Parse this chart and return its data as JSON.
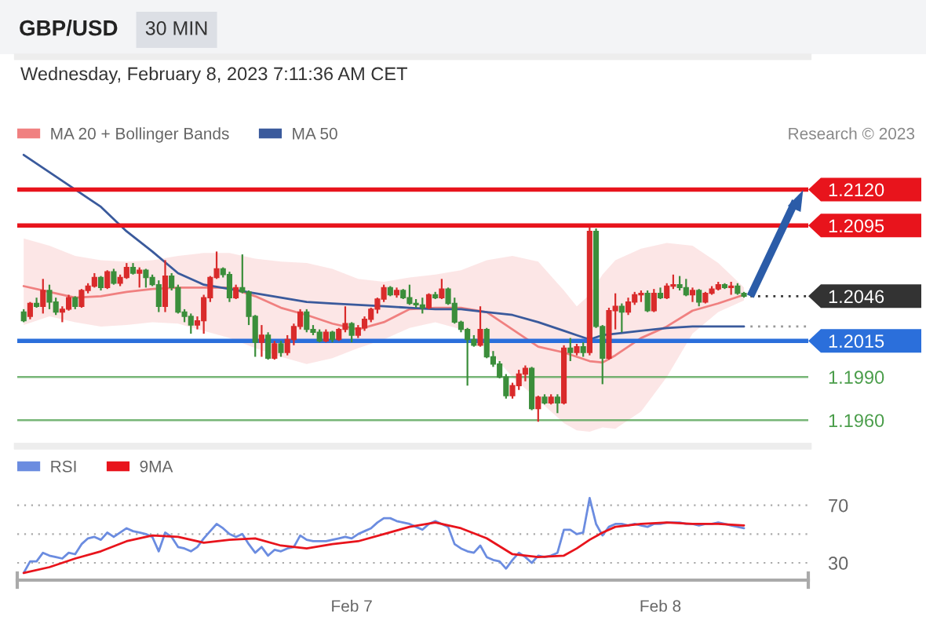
{
  "chart_data": [
    {
      "type": "candlestick",
      "title": "GBP/USD",
      "subtitle": "Wednesday, February 8, 2023 7:11:36 AM CET",
      "annotations": [
        "30 MIN",
        "Research © 2023"
      ],
      "x": [
        "2023-02-05T22:30",
        "2023-02-05T23:00",
        "2023-02-05T23:30",
        "2023-02-06T00:00",
        "2023-02-06T00:30",
        "2023-02-06T01:00",
        "2023-02-06T01:30",
        "2023-02-06T02:00",
        "2023-02-06T02:30",
        "2023-02-06T03:00",
        "2023-02-06T03:30",
        "2023-02-06T04:00",
        "2023-02-06T04:30",
        "2023-02-06T05:00",
        "2023-02-06T05:30",
        "2023-02-06T06:00",
        "2023-02-06T06:30",
        "2023-02-06T07:00",
        "2023-02-06T07:30",
        "2023-02-06T08:00",
        "2023-02-06T08:30",
        "2023-02-06T09:00",
        "2023-02-06T09:30",
        "2023-02-06T10:00",
        "2023-02-06T10:30",
        "2023-02-06T11:00",
        "2023-02-06T11:30",
        "2023-02-06T12:00",
        "2023-02-06T12:30",
        "2023-02-06T13:00",
        "2023-02-06T13:30",
        "2023-02-06T14:00",
        "2023-02-06T14:30",
        "2023-02-06T15:00",
        "2023-02-06T15:30",
        "2023-02-06T16:00",
        "2023-02-06T16:30",
        "2023-02-06T17:00",
        "2023-02-06T17:30",
        "2023-02-06T18:00",
        "2023-02-06T18:30",
        "2023-02-06T19:00",
        "2023-02-06T19:30",
        "2023-02-06T20:00",
        "2023-02-06T20:30",
        "2023-02-06T21:00",
        "2023-02-06T21:30",
        "2023-02-06T22:00",
        "2023-02-06T22:30",
        "2023-02-06T23:00",
        "2023-02-06T23:30",
        "2023-02-07T00:00",
        "2023-02-07T00:30",
        "2023-02-07T01:00",
        "2023-02-07T01:30",
        "2023-02-07T02:00",
        "2023-02-07T02:30",
        "2023-02-07T03:00",
        "2023-02-07T03:30",
        "2023-02-07T04:00",
        "2023-02-07T04:30",
        "2023-02-07T05:00",
        "2023-02-07T05:30",
        "2023-02-07T06:00",
        "2023-02-07T06:30",
        "2023-02-07T07:00",
        "2023-02-07T07:30",
        "2023-02-07T08:00",
        "2023-02-07T08:30",
        "2023-02-07T09:00",
        "2023-02-07T09:30",
        "2023-02-07T10:00",
        "2023-02-07T10:30",
        "2023-02-07T11:00",
        "2023-02-07T11:30",
        "2023-02-07T12:00",
        "2023-02-07T12:30",
        "2023-02-07T13:00",
        "2023-02-07T13:30",
        "2023-02-07T14:00",
        "2023-02-07T14:30",
        "2023-02-07T15:00",
        "2023-02-07T15:30",
        "2023-02-07T16:00",
        "2023-02-07T16:30",
        "2023-02-07T17:00",
        "2023-02-07T17:30",
        "2023-02-07T18:00",
        "2023-02-07T18:30",
        "2023-02-07T19:00",
        "2023-02-07T19:30",
        "2023-02-07T20:00",
        "2023-02-07T20:30",
        "2023-02-07T21:00",
        "2023-02-07T21:30",
        "2023-02-07T22:00",
        "2023-02-07T22:30",
        "2023-02-07T23:00",
        "2023-02-07T23:30",
        "2023-02-08T00:00",
        "2023-02-08T00:30",
        "2023-02-08T01:00",
        "2023-02-08T01:30",
        "2023-02-08T02:00",
        "2023-02-08T02:30",
        "2023-02-08T03:00",
        "2023-02-08T03:30",
        "2023-02-08T04:00",
        "2023-02-08T04:30",
        "2023-02-08T05:00",
        "2023-02-08T05:30",
        "2023-02-08T06:00",
        "2023-02-08T06:30"
      ],
      "ohlc": [
        [
          1.2035,
          1.2037,
          1.2028,
          1.2029
        ],
        [
          1.2032,
          1.2042,
          1.203,
          1.2041
        ],
        [
          1.2041,
          1.2045,
          1.2038,
          1.2039
        ],
        [
          1.2039,
          1.2058,
          1.2034,
          1.205
        ],
        [
          1.205,
          1.2054,
          1.2037,
          1.2042
        ],
        [
          1.2042,
          1.2045,
          1.2033,
          1.2035
        ],
        [
          1.2035,
          1.2039,
          1.2028,
          1.2037
        ],
        [
          1.2037,
          1.2047,
          1.2036,
          1.2045
        ],
        [
          1.2045,
          1.2046,
          1.2037,
          1.2039
        ],
        [
          1.2039,
          1.2051,
          1.2038,
          1.205
        ],
        [
          1.205,
          1.2055,
          1.2048,
          1.2053
        ],
        [
          1.2053,
          1.2062,
          1.2052,
          1.2059
        ],
        [
          1.2059,
          1.206,
          1.205,
          1.2052
        ],
        [
          1.2052,
          1.2064,
          1.2051,
          1.2063
        ],
        [
          1.2063,
          1.2065,
          1.2054,
          1.2055
        ],
        [
          1.2055,
          1.2061,
          1.2053,
          1.2059
        ],
        [
          1.2059,
          1.2069,
          1.2058,
          1.2066
        ],
        [
          1.2066,
          1.2069,
          1.2061,
          1.2062
        ],
        [
          1.2062,
          1.2066,
          1.2052,
          1.2064
        ],
        [
          1.2064,
          1.2065,
          1.2052,
          1.2059
        ],
        [
          1.2059,
          1.2061,
          1.2053,
          1.2054
        ],
        [
          1.2054,
          1.2057,
          1.2035,
          1.2039
        ],
        [
          1.2039,
          1.2071,
          1.2035,
          1.206
        ],
        [
          1.206,
          1.2062,
          1.205,
          1.2052
        ],
        [
          1.2052,
          1.2054,
          1.2034,
          1.2035
        ],
        [
          1.2035,
          1.2037,
          1.2028,
          1.2032
        ],
        [
          1.2032,
          1.2034,
          1.202,
          1.2026
        ],
        [
          1.2026,
          1.2032,
          1.2023,
          1.2029
        ],
        [
          1.2029,
          1.2047,
          1.202,
          1.2045
        ],
        [
          1.2045,
          1.206,
          1.2042,
          1.2059
        ],
        [
          1.2059,
          1.2077,
          1.2058,
          1.2065
        ],
        [
          1.2065,
          1.2066,
          1.2059,
          1.2061
        ],
        [
          1.2061,
          1.2063,
          1.2042,
          1.2045
        ],
        [
          1.2045,
          1.2054,
          1.2044,
          1.2052
        ],
        [
          1.2052,
          1.2075,
          1.2048,
          1.2049
        ],
        [
          1.2049,
          1.205,
          1.2026,
          1.2032
        ],
        [
          1.2032,
          1.2033,
          1.2004,
          1.2014
        ],
        [
          1.2014,
          1.2026,
          1.2004,
          1.2019
        ],
        [
          1.2019,
          1.2021,
          1.2002,
          1.2003
        ],
        [
          1.2003,
          1.2015,
          1.2002,
          1.2013
        ],
        [
          1.2013,
          1.2015,
          1.2004,
          1.2007
        ],
        [
          1.2007,
          1.2019,
          1.2005,
          1.2016
        ],
        [
          1.2016,
          1.2027,
          1.2012,
          1.2025
        ],
        [
          1.2025,
          1.2037,
          1.2023,
          1.2035
        ],
        [
          1.2035,
          1.2037,
          1.2021,
          1.2023
        ],
        [
          1.2023,
          1.2026,
          1.2019,
          1.2021
        ],
        [
          1.2021,
          1.2023,
          1.2014,
          1.2015
        ],
        [
          1.2015,
          1.2023,
          1.2014,
          1.2021
        ],
        [
          1.2021,
          1.2022,
          1.2014,
          1.2016
        ],
        [
          1.2016,
          1.2024,
          1.2015,
          1.2023
        ],
        [
          1.2023,
          1.2039,
          1.2021,
          1.2027
        ],
        [
          1.2027,
          1.2028,
          1.2014,
          1.2019
        ],
        [
          1.2019,
          1.2026,
          1.2017,
          1.2024
        ],
        [
          1.2024,
          1.2032,
          1.2022,
          1.203
        ],
        [
          1.203,
          1.2038,
          1.2028,
          1.2037
        ],
        [
          1.2037,
          1.2045,
          1.2034,
          1.2044
        ],
        [
          1.2044,
          1.2054,
          1.2042,
          1.2052
        ],
        [
          1.2052,
          1.2053,
          1.2046,
          1.2047
        ],
        [
          1.2047,
          1.2052,
          1.2045,
          1.205
        ],
        [
          1.205,
          1.2051,
          1.2044,
          1.2045
        ],
        [
          1.2045,
          1.2054,
          1.204,
          1.2041
        ],
        [
          1.2041,
          1.2044,
          1.2038,
          1.204
        ],
        [
          1.204,
          1.2045,
          1.2034,
          1.2038
        ],
        [
          1.2038,
          1.2048,
          1.2037,
          1.2047
        ],
        [
          1.2047,
          1.2049,
          1.2044,
          1.2045
        ],
        [
          1.2045,
          1.2058,
          1.2044,
          1.2051
        ],
        [
          1.2051,
          1.2052,
          1.204,
          1.2041
        ],
        [
          1.2041,
          1.2045,
          1.2027,
          1.2028
        ],
        [
          1.2028,
          1.2029,
          1.2021,
          1.2023
        ],
        [
          1.2023,
          1.2024,
          1.1984,
          1.2016
        ],
        [
          1.2016,
          1.2019,
          1.2011,
          1.2012
        ],
        [
          1.2012,
          1.2039,
          1.2011,
          1.2023
        ],
        [
          1.2023,
          1.2024,
          1.2003,
          1.2004
        ],
        [
          1.2004,
          1.2008,
          1.1997,
          1.1999
        ],
        [
          1.1999,
          1.2001,
          1.1989,
          1.199
        ],
        [
          1.199,
          1.1992,
          1.1975,
          1.1977
        ],
        [
          1.1977,
          1.1986,
          1.1975,
          1.1984
        ],
        [
          1.1984,
          1.1995,
          1.1981,
          1.1992
        ],
        [
          1.1992,
          1.1998,
          1.1987,
          1.1996
        ],
        [
          1.1996,
          1.1997,
          1.1967,
          1.1968
        ],
        [
          1.1968,
          1.1977,
          1.1959,
          1.1976
        ],
        [
          1.1976,
          1.1978,
          1.1971,
          1.1972
        ],
        [
          1.1972,
          1.1978,
          1.1971,
          1.1976
        ],
        [
          1.1976,
          1.1978,
          1.1965,
          1.1972
        ],
        [
          1.1972,
          1.2012,
          1.1971,
          1.201
        ],
        [
          1.201,
          1.2017,
          1.2001,
          1.2007
        ],
        [
          1.2007,
          1.2013,
          1.2005,
          1.2011
        ],
        [
          1.2011,
          1.2014,
          1.2004,
          1.2007
        ],
        [
          1.2007,
          1.2094,
          1.2005,
          1.2091
        ],
        [
          1.2091,
          1.2093,
          1.2024,
          1.2025
        ],
        [
          1.2025,
          1.2026,
          1.1985,
          1.2003
        ],
        [
          1.2003,
          1.2038,
          1.2002,
          1.2036
        ],
        [
          1.2036,
          1.2048,
          1.2023,
          1.2039
        ],
        [
          1.2039,
          1.2041,
          1.2021,
          1.2035
        ],
        [
          1.2035,
          1.2045,
          1.2033,
          1.2042
        ],
        [
          1.2042,
          1.2049,
          1.204,
          1.2047
        ],
        [
          1.2047,
          1.205,
          1.2042,
          1.2048
        ],
        [
          1.2048,
          1.205,
          1.2035,
          1.2036
        ],
        [
          1.2036,
          1.2051,
          1.2035,
          1.2048
        ],
        [
          1.2048,
          1.2052,
          1.2044,
          1.2045
        ],
        [
          1.2045,
          1.2055,
          1.2044,
          1.2053
        ],
        [
          1.2053,
          1.2061,
          1.2051,
          1.2054
        ],
        [
          1.2054,
          1.206,
          1.205,
          1.2052
        ],
        [
          1.2052,
          1.2058,
          1.2046,
          1.2047
        ],
        [
          1.2047,
          1.2052,
          1.2042,
          1.205
        ],
        [
          1.205,
          1.2051,
          1.2039,
          1.2042
        ],
        [
          1.2042,
          1.2049,
          1.2041,
          1.2048
        ],
        [
          1.2048,
          1.2053,
          1.2047,
          1.2051
        ],
        [
          1.2051,
          1.2056,
          1.205,
          1.2054
        ],
        [
          1.2054,
          1.2055,
          1.2051,
          1.2052
        ],
        [
          1.2052,
          1.2056,
          1.2047,
          1.2053
        ],
        [
          1.2053,
          1.2055,
          1.2047,
          1.2048
        ],
        [
          1.2048,
          1.2049,
          1.2045,
          1.2046
        ]
      ],
      "colors": [
        "#3b8e3b",
        "#d92b2b",
        "#3b8e3b",
        "#d92b2b",
        "#3b8e3b",
        "#3b8e3b",
        "#d92b2b",
        "#d92b2b",
        "#3b8e3b",
        "#d92b2b",
        "#d92b2b",
        "#d92b2b",
        "#3b8e3b",
        "#d92b2b",
        "#3b8e3b",
        "#d92b2b",
        "#d92b2b",
        "#3b8e3b",
        "#d92b2b",
        "#3b8e3b",
        "#3b8e3b",
        "#3b8e3b",
        "#d92b2b",
        "#3b8e3b",
        "#3b8e3b",
        "#3b8e3b",
        "#3b8e3b",
        "#d92b2b",
        "#d92b2b",
        "#d92b2b",
        "#d92b2b",
        "#3b8e3b",
        "#3b8e3b",
        "#d92b2b",
        "#3b8e3b",
        "#3b8e3b",
        "#3b8e3b",
        "#d92b2b",
        "#3b8e3b",
        "#d92b2b",
        "#3b8e3b",
        "#d92b2b",
        "#d92b2b",
        "#d92b2b",
        "#3b8e3b",
        "#3b8e3b",
        "#3b8e3b",
        "#d92b2b",
        "#3b8e3b",
        "#d92b2b",
        "#d92b2b",
        "#3b8e3b",
        "#d92b2b",
        "#d92b2b",
        "#d92b2b",
        "#d92b2b",
        "#d92b2b",
        "#3b8e3b",
        "#d92b2b",
        "#3b8e3b",
        "#3b8e3b",
        "#3b8e3b",
        "#3b8e3b",
        "#d92b2b",
        "#3b8e3b",
        "#d92b2b",
        "#3b8e3b",
        "#3b8e3b",
        "#3b8e3b",
        "#3b8e3b",
        "#3b8e3b",
        "#d92b2b",
        "#3b8e3b",
        "#3b8e3b",
        "#3b8e3b",
        "#3b8e3b",
        "#d92b2b",
        "#d92b2b",
        "#d92b2b",
        "#3b8e3b",
        "#d92b2b",
        "#3b8e3b",
        "#d92b2b",
        "#3b8e3b",
        "#d92b2b",
        "#3b8e3b",
        "#d92b2b",
        "#3b8e3b",
        "#d92b2b",
        "#3b8e3b",
        "#3b8e3b",
        "#d92b2b",
        "#d92b2b",
        "#3b8e3b",
        "#d92b2b",
        "#d92b2b",
        "#d92b2b",
        "#3b8e3b",
        "#d92b2b",
        "#3b8e3b",
        "#d92b2b",
        "#d92b2b",
        "#3b8e3b",
        "#3b8e3b",
        "#d92b2b",
        "#3b8e3b",
        "#d92b2b",
        "#d92b2b",
        "#d92b2b",
        "#3b8e3b",
        "#d92b2b",
        "#3b8e3b",
        "#3b8e3b"
      ],
      "series": [
        {
          "name": "MA 20 + Bollinger Bands",
          "type": "line",
          "color": "#f08080",
          "x": [
            "2023-02-05T22:30",
            "2023-02-06T00:30",
            "2023-02-06T02:30",
            "2023-02-06T04:30",
            "2023-02-06T06:30",
            "2023-02-06T08:30",
            "2023-02-06T10:30",
            "2023-02-06T12:30",
            "2023-02-06T14:30",
            "2023-02-06T16:30",
            "2023-02-06T18:30",
            "2023-02-06T20:30",
            "2023-02-06T22:30",
            "2023-02-07T00:30",
            "2023-02-07T02:30",
            "2023-02-07T04:30",
            "2023-02-07T06:30",
            "2023-02-07T08:30",
            "2023-02-07T10:30",
            "2023-02-07T12:30",
            "2023-02-07T14:30",
            "2023-02-07T16:30",
            "2023-02-07T17:30",
            "2023-02-07T18:30",
            "2023-02-07T19:30",
            "2023-02-07T20:30",
            "2023-02-07T22:30",
            "2023-02-08T00:30",
            "2023-02-08T02:30",
            "2023-02-08T04:30",
            "2023-02-08T06:30"
          ],
          "values": [
            1.2053,
            1.2049,
            1.2045,
            1.2046,
            1.2049,
            1.2051,
            1.2052,
            1.2052,
            1.2052,
            1.2046,
            1.2038,
            1.2033,
            1.2027,
            1.2023,
            1.2028,
            1.2037,
            1.2038,
            1.2038,
            1.2035,
            1.2023,
            1.2011,
            1.2007,
            1.2004,
            1.2001,
            1.2,
            1.2005,
            1.2017,
            1.2025,
            1.2036,
            1.2041,
            1.2047
          ],
          "lower": [
            1.2026,
            1.2032,
            1.2028,
            1.2025,
            1.2026,
            1.2028,
            1.2027,
            1.2022,
            1.2017,
            1.201,
            1.2004,
            1.1999,
            1.2003,
            1.201,
            1.2016,
            1.2024,
            1.2028,
            1.2023,
            1.201,
            1.199,
            1.1974,
            1.1958,
            1.1953,
            1.1952,
            1.1955,
            1.1954,
            1.1966,
            1.199,
            1.202,
            1.2035,
            1.2043
          ],
          "upper": [
            1.2086,
            1.2081,
            1.2074,
            1.2071,
            1.207,
            1.2071,
            1.2074,
            1.2076,
            1.2076,
            1.2072,
            1.207,
            1.2069,
            1.2065,
            1.2058,
            1.2056,
            1.2059,
            1.2061,
            1.2064,
            1.2071,
            1.2074,
            1.207,
            1.205,
            1.2039,
            1.2047,
            1.2061,
            1.2071,
            1.2079,
            1.2083,
            1.2081,
            1.2069,
            1.2052
          ]
        },
        {
          "name": "MA 50",
          "type": "line",
          "color": "#3a5a9c",
          "x": [
            "2023-02-05T22:30",
            "2023-02-06T00:30",
            "2023-02-06T02:30",
            "2023-02-06T04:30",
            "2023-02-06T06:30",
            "2023-02-06T08:30",
            "2023-02-06T10:30",
            "2023-02-06T12:30",
            "2023-02-06T14:30",
            "2023-02-06T16:30",
            "2023-02-06T18:30",
            "2023-02-06T20:30",
            "2023-02-06T22:30",
            "2023-02-07T00:30",
            "2023-02-07T02:30",
            "2023-02-07T04:30",
            "2023-02-07T06:30",
            "2023-02-07T08:30",
            "2023-02-07T10:30",
            "2023-02-07T12:30",
            "2023-02-07T14:30",
            "2023-02-07T16:30",
            "2023-02-07T17:30",
            "2023-02-07T18:30",
            "2023-02-07T19:30",
            "2023-02-07T20:30",
            "2023-02-07T22:30",
            "2023-02-08T00:30",
            "2023-02-08T02:30",
            "2023-02-08T04:30",
            "2023-02-08T06:30"
          ],
          "values": [
            1.2144,
            1.2132,
            1.212,
            1.2108,
            1.2091,
            1.2077,
            1.2062,
            1.2054,
            1.2051,
            1.2048,
            1.2045,
            1.2042,
            1.2041,
            1.204,
            1.2039,
            1.2038,
            1.2037,
            1.2037,
            1.2035,
            1.2033,
            1.2028,
            1.2022,
            1.2019,
            1.2016,
            1.2019,
            1.202,
            1.2022,
            1.2024,
            1.2025,
            1.2025,
            1.2025
          ]
        },
        {
          "type": "line",
          "color": "#999999",
          "line_style": "dotted",
          "x": [
            "2023-02-08T07:00",
            "2023-02-08T11:30"
          ],
          "values": [
            1.2025,
            1.2025
          ]
        },
        {
          "type": "line",
          "color": "#333333",
          "line_style": "dotted",
          "x": [
            "2023-02-08T07:00",
            "2023-02-08T11:30"
          ],
          "values": [
            1.2046,
            1.2046
          ]
        },
        {
          "type": "line",
          "color": "#2b5ca8",
          "marker": "triangle",
          "x": [
            "2023-02-08T07:00",
            "2023-02-08T10:30"
          ],
          "values": [
            1.2046,
            1.2112
          ]
        }
      ],
      "xlim": [
        "2023-02-05T22:00",
        "2023-02-08T11:30"
      ],
      "ylim": [
        1.1942,
        1.2212
      ],
      "tick_labels": "y",
      "legend": "top left",
      "yticks": [
        {
          "value": 1.196,
          "label": "1.1960"
        },
        {
          "value": 1.199,
          "label": "1.1990"
        },
        {
          "value": 1.2015,
          "label": "1.2015"
        },
        {
          "value": 1.2046,
          "label": "1.2046"
        },
        {
          "value": 1.2095,
          "label": "1.2095"
        },
        {
          "value": 1.212,
          "label": "1.2120"
        }
      ],
      "ref_lines": [
        {
          "axis": "y",
          "value": 1.212,
          "color": "#e8141c",
          "line_style": "solid"
        },
        {
          "axis": "y",
          "value": 1.2095,
          "color": "#e8141c",
          "line_style": "solid"
        },
        {
          "axis": "y",
          "value": 1.2015,
          "color": "#2b6fdb",
          "line_style": "solid"
        },
        {
          "axis": "y",
          "value": 1.199,
          "color": "#4a9d4a",
          "line_style": "solid"
        },
        {
          "axis": "y",
          "value": 1.196,
          "color": "#4a9d4a",
          "line_style": "solid"
        }
      ]
    },
    {
      "type": "line",
      "x": [
        "2023-02-05T22:30",
        "2023-02-05T23:00",
        "2023-02-05T23:30",
        "2023-02-06T00:00",
        "2023-02-06T00:30",
        "2023-02-06T01:00",
        "2023-02-06T01:30",
        "2023-02-06T02:00",
        "2023-02-06T02:30",
        "2023-02-06T03:00",
        "2023-02-06T03:30",
        "2023-02-06T04:00",
        "2023-02-06T04:30",
        "2023-02-06T05:00",
        "2023-02-06T05:30",
        "2023-02-06T06:00",
        "2023-02-06T06:30",
        "2023-02-06T07:00",
        "2023-02-06T07:30",
        "2023-02-06T08:00",
        "2023-02-06T08:30",
        "2023-02-06T09:00",
        "2023-02-06T09:30",
        "2023-02-06T10:00",
        "2023-02-06T10:30",
        "2023-02-06T11:00",
        "2023-02-06T11:30",
        "2023-02-06T12:00",
        "2023-02-06T12:30",
        "2023-02-06T13:00",
        "2023-02-06T13:30",
        "2023-02-06T14:00",
        "2023-02-06T14:30",
        "2023-02-06T15:00",
        "2023-02-06T15:30",
        "2023-02-06T16:00",
        "2023-02-06T16:30",
        "2023-02-06T17:00",
        "2023-02-06T17:30",
        "2023-02-06T18:00",
        "2023-02-06T18:30",
        "2023-02-06T19:00",
        "2023-02-06T19:30",
        "2023-02-06T20:00",
        "2023-02-06T20:30",
        "2023-02-06T21:00",
        "2023-02-06T21:30",
        "2023-02-06T22:00",
        "2023-02-06T22:30",
        "2023-02-06T23:00",
        "2023-02-06T23:30",
        "2023-02-07T00:00",
        "2023-02-07T00:30",
        "2023-02-07T01:00",
        "2023-02-07T01:30",
        "2023-02-07T02:00",
        "2023-02-07T02:30",
        "2023-02-07T03:00",
        "2023-02-07T03:30",
        "2023-02-07T04:00",
        "2023-02-07T04:30",
        "2023-02-07T05:00",
        "2023-02-07T05:30",
        "2023-02-07T06:00",
        "2023-02-07T06:30",
        "2023-02-07T07:00",
        "2023-02-07T07:30",
        "2023-02-07T08:00",
        "2023-02-07T08:30",
        "2023-02-07T09:00",
        "2023-02-07T09:30",
        "2023-02-07T10:00",
        "2023-02-07T10:30",
        "2023-02-07T11:00",
        "2023-02-07T11:30",
        "2023-02-07T12:00",
        "2023-02-07T12:30",
        "2023-02-07T13:00",
        "2023-02-07T13:30",
        "2023-02-07T14:00",
        "2023-02-07T14:30",
        "2023-02-07T15:00",
        "2023-02-07T15:30",
        "2023-02-07T16:00",
        "2023-02-07T16:30",
        "2023-02-07T17:00",
        "2023-02-07T17:30",
        "2023-02-07T18:00",
        "2023-02-07T18:30",
        "2023-02-07T19:00",
        "2023-02-07T19:30",
        "2023-02-07T20:00",
        "2023-02-07T20:30",
        "2023-02-07T21:00",
        "2023-02-07T21:30",
        "2023-02-07T22:00",
        "2023-02-07T22:30",
        "2023-02-07T23:00",
        "2023-02-07T23:30",
        "2023-02-08T00:00",
        "2023-02-08T00:30",
        "2023-02-08T01:00",
        "2023-02-08T01:30",
        "2023-02-08T02:00",
        "2023-02-08T02:30",
        "2023-02-08T03:00",
        "2023-02-08T03:30",
        "2023-02-08T04:00",
        "2023-02-08T04:30",
        "2023-02-08T05:00",
        "2023-02-08T05:30",
        "2023-02-08T06:00",
        "2023-02-08T06:30"
      ],
      "series": [
        {
          "name": "RSI",
          "color": "#6b8ce0",
          "values": [
            23,
            31,
            31,
            37,
            35,
            34,
            33,
            37,
            36,
            43,
            47,
            48,
            46,
            51,
            48,
            51,
            54,
            52,
            51,
            50,
            48,
            38,
            51,
            48,
            41,
            40,
            38,
            41,
            47,
            52,
            57,
            54,
            50,
            48,
            50,
            43,
            37,
            41,
            35,
            39,
            38,
            40,
            41,
            49,
            46,
            45,
            45,
            45,
            46,
            47,
            48,
            47,
            50,
            52,
            54,
            58,
            61,
            61,
            59,
            58,
            57,
            55,
            53,
            57,
            59,
            57,
            55,
            43,
            40,
            38,
            37,
            42,
            34,
            32,
            31,
            26,
            32,
            37,
            34,
            30,
            35,
            34,
            35,
            37,
            53,
            53,
            50,
            51,
            75,
            57,
            49,
            55,
            57,
            57,
            56,
            57,
            56,
            55,
            57,
            57,
            58,
            58,
            58,
            57,
            57,
            56,
            57,
            57,
            58,
            57,
            56,
            55,
            54
          ]
        },
        {
          "name": "9MA",
          "color": "#e8141c",
          "x": [
            "2023-02-05T22:30",
            "2023-02-06T00:30",
            "2023-02-06T02:30",
            "2023-02-06T04:30",
            "2023-02-06T06:30",
            "2023-02-06T08:30",
            "2023-02-06T10:30",
            "2023-02-06T12:30",
            "2023-02-06T14:30",
            "2023-02-06T16:30",
            "2023-02-06T18:30",
            "2023-02-06T20:30",
            "2023-02-06T22:30",
            "2023-02-07T00:30",
            "2023-02-07T02:30",
            "2023-02-07T04:30",
            "2023-02-07T06:30",
            "2023-02-07T08:30",
            "2023-02-07T10:30",
            "2023-02-07T12:30",
            "2023-02-07T14:30",
            "2023-02-07T16:30",
            "2023-02-07T17:30",
            "2023-02-07T18:30",
            "2023-02-07T19:30",
            "2023-02-07T20:30",
            "2023-02-07T22:30",
            "2023-02-08T00:30",
            "2023-02-08T02:30",
            "2023-02-08T04:30",
            "2023-02-08T06:30"
          ],
          "values": [
            23,
            27,
            33,
            38,
            45,
            49,
            48,
            44,
            46,
            47,
            42,
            40,
            43,
            45,
            50,
            55,
            58,
            54,
            47,
            36,
            34,
            35,
            40,
            46,
            51,
            55,
            57,
            58,
            57,
            57,
            56
          ]
        }
      ],
      "xlim": [
        "2023-02-05T22:00",
        "2023-02-08T11:30"
      ],
      "ylim": [
        18,
        111
      ],
      "xticks": [
        {
          "value": "2023-02-05T22:00",
          "label": null
        },
        {
          "value": "2023-02-07",
          "label": "Feb 7"
        },
        {
          "value": "2023-02-08",
          "label": "Feb 8"
        },
        {
          "value": "2023-02-08T11:30",
          "label": null
        }
      ],
      "yticks": [
        30,
        {
          "value": 50,
          "label": null
        },
        70
      ],
      "grid": "y",
      "legend": "top left"
    }
  ]
}
